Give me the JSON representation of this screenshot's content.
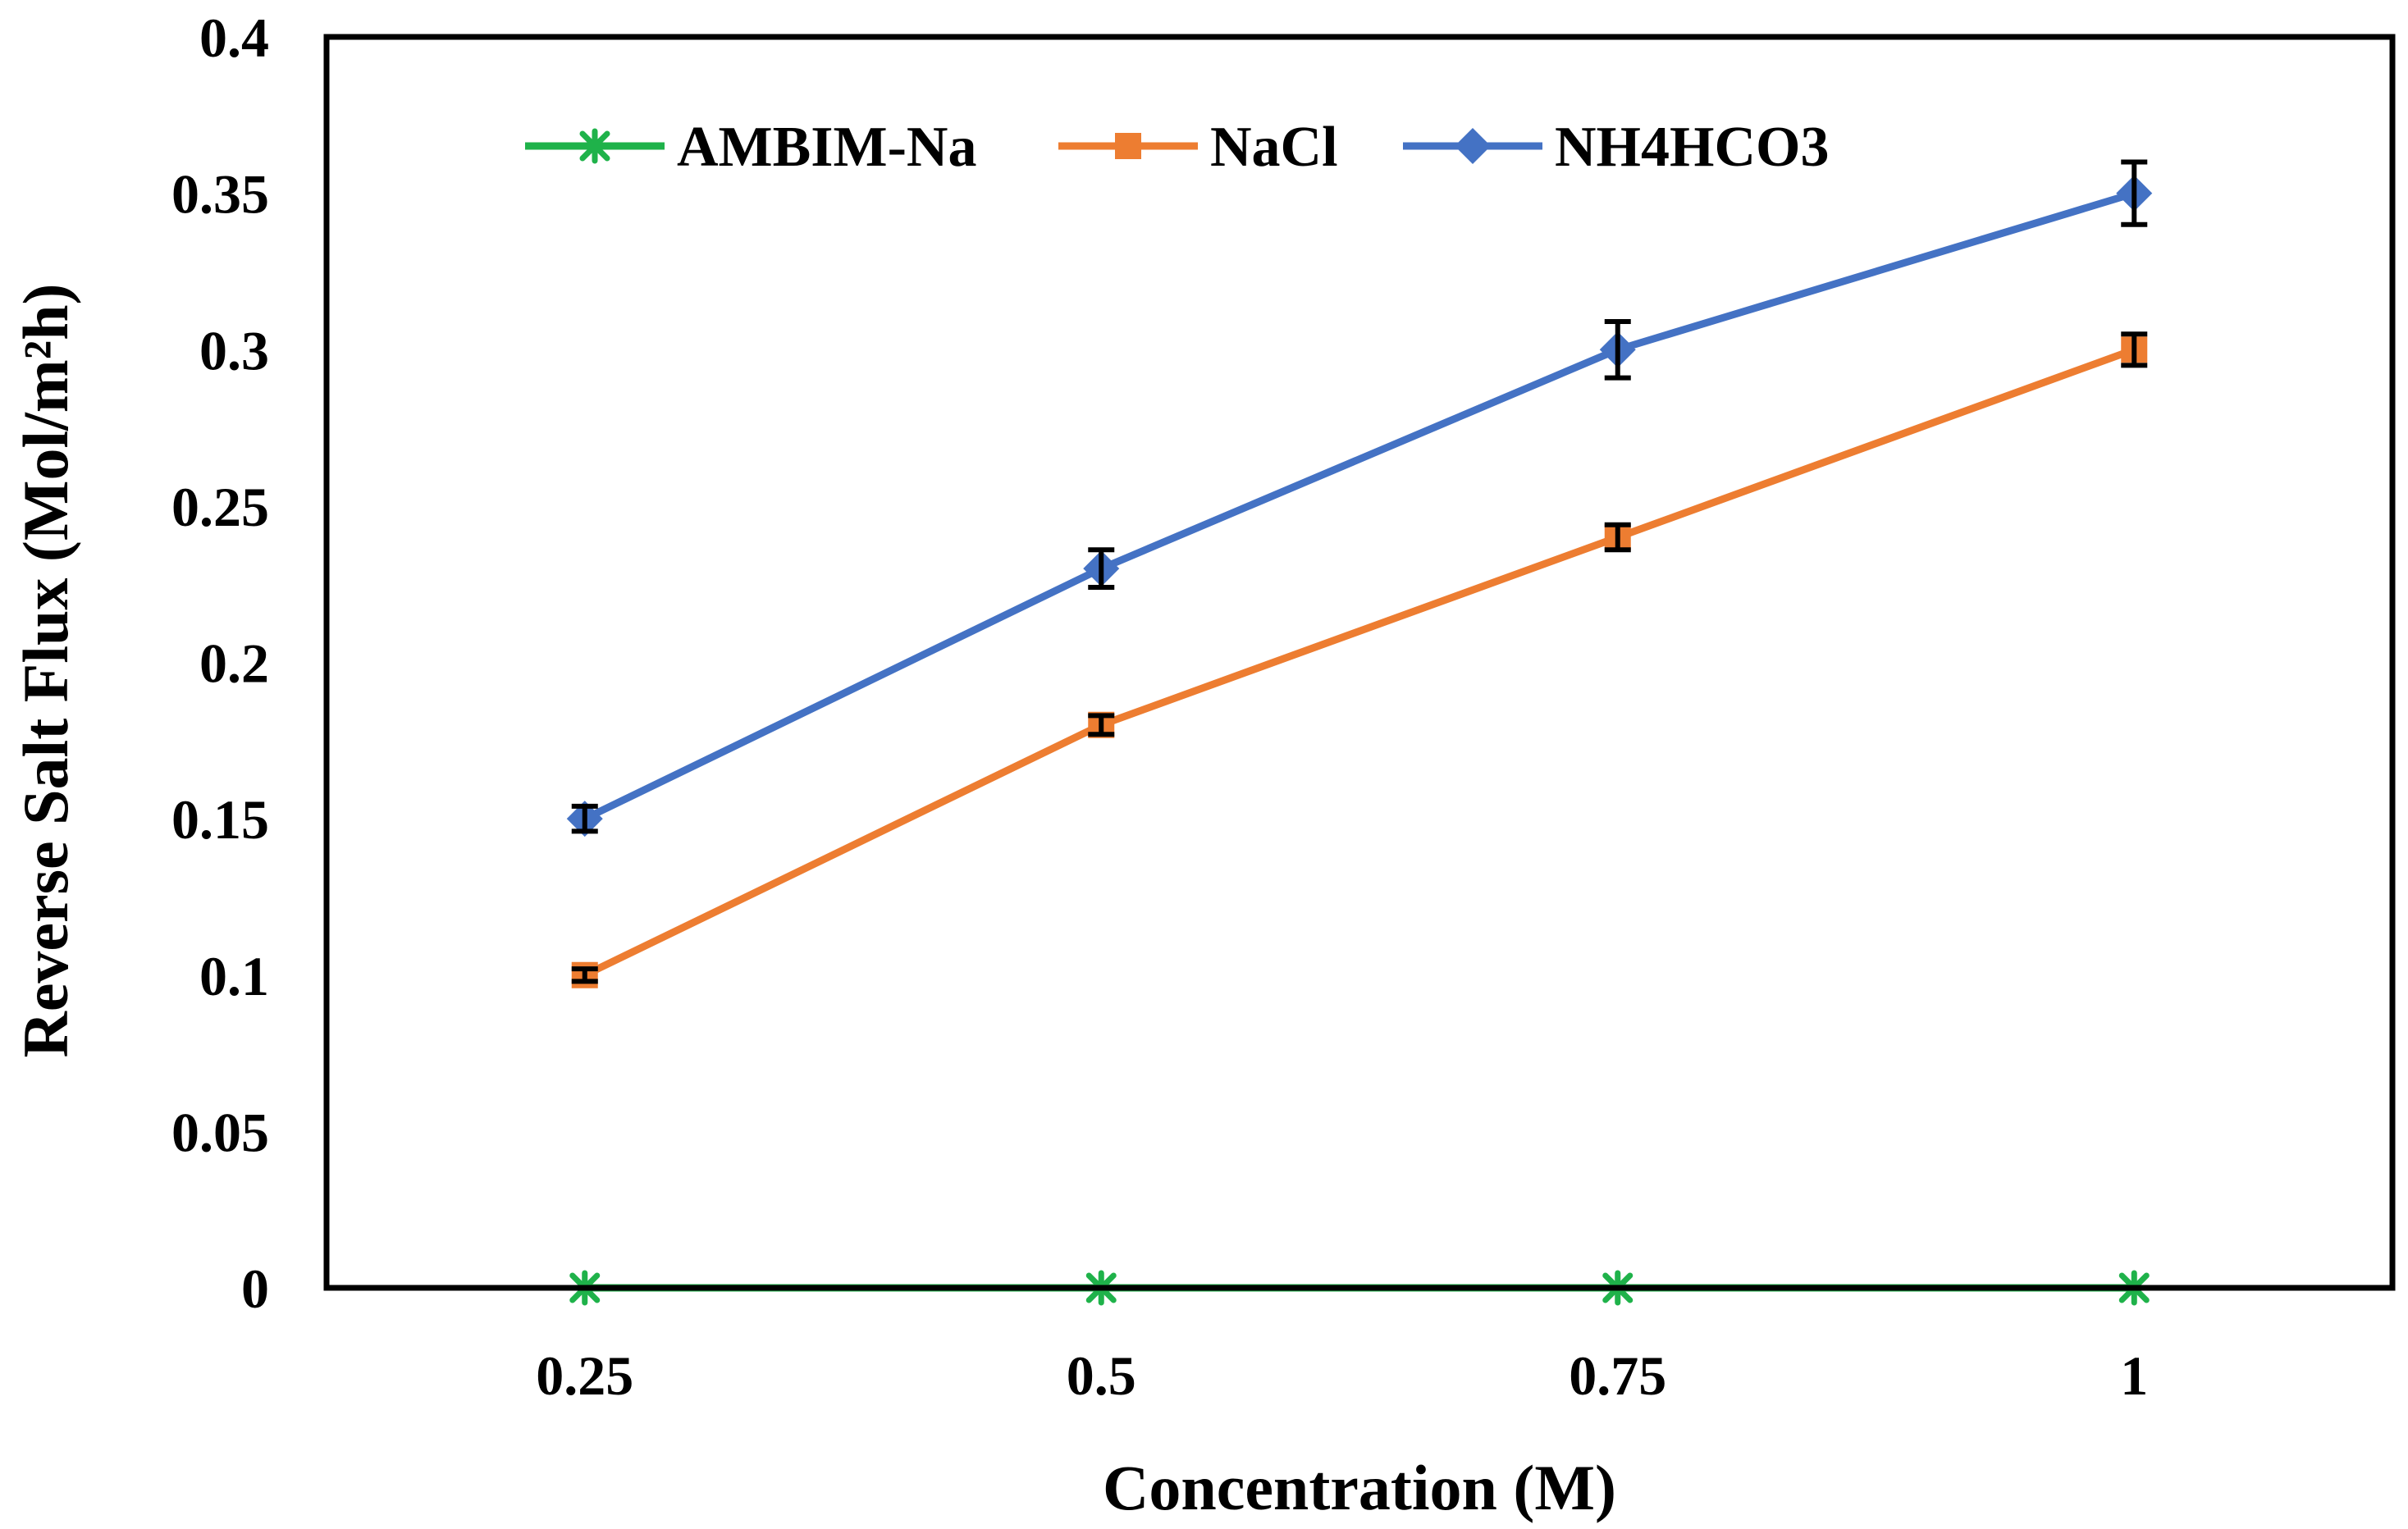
{
  "chart_data": {
    "type": "line",
    "title": "",
    "xlabel": "Concentration (M)",
    "ylabel": "Reverse Salt Flux (Mol/m²h)",
    "categories": [
      "0.25",
      "0.5",
      "0.75",
      "1"
    ],
    "ylim": [
      0,
      0.4
    ],
    "yticks": [
      0,
      0.05,
      0.1,
      0.15,
      0.2,
      0.25,
      0.3,
      0.35,
      0.4
    ],
    "ytick_labels": [
      "0",
      "0.05",
      "0.1",
      "0.15",
      "0.2",
      "0.25",
      "0.3",
      "0.35",
      "0.4"
    ],
    "grid": false,
    "legend_position": "top",
    "series": [
      {
        "name": "AMBIM-Na",
        "color": "#1fb24a",
        "marker": "asterisk",
        "values": [
          0,
          0,
          0,
          0
        ],
        "errors": [
          0,
          0,
          0,
          0
        ]
      },
      {
        "name": "NaCl",
        "color": "#ed7d31",
        "marker": "square",
        "values": [
          0.1,
          0.18,
          0.24,
          0.3
        ],
        "errors": [
          0.002,
          0.003,
          0.004,
          0.005
        ]
      },
      {
        "name": "NH4HCO3",
        "color": "#4472c4",
        "marker": "diamond",
        "values": [
          0.15,
          0.23,
          0.3,
          0.35
        ],
        "errors": [
          0.004,
          0.006,
          0.009,
          0.01
        ]
      }
    ]
  }
}
